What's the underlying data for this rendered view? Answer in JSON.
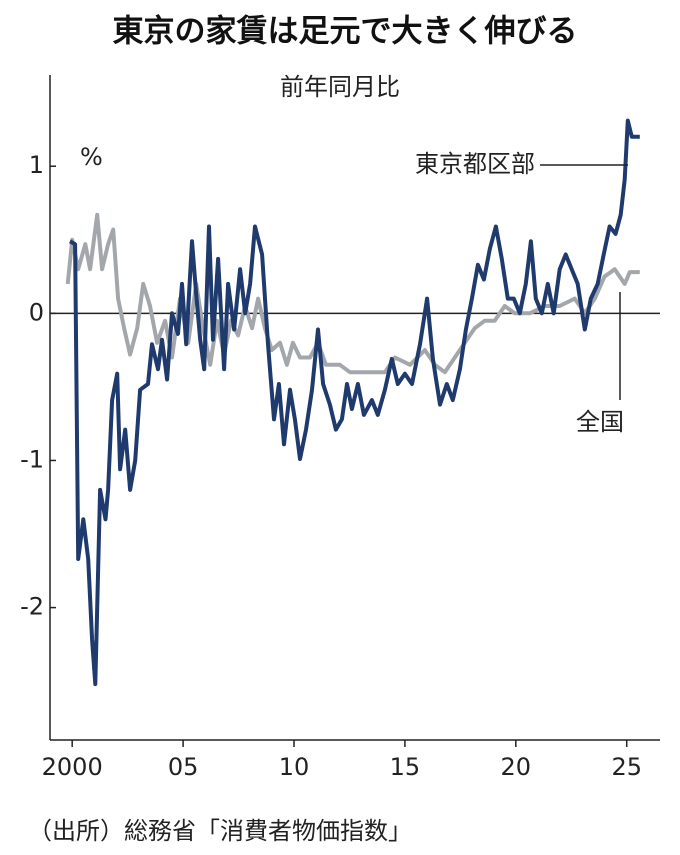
{
  "chart_data": {
    "type": "line",
    "title": "東京の家賃は足元で大きく伸びる",
    "subtitle": "前年同月比",
    "ylabel": "%",
    "source": "（出所）総務省「消費者物価指数」",
    "xlim": [
      1999,
      2026.5
    ],
    "xticks": [
      2000,
      {
        "value": 2005,
        "label": "05"
      },
      {
        "value": 2010,
        "label": "10"
      },
      {
        "value": 2015,
        "label": "15"
      },
      {
        "value": 2020,
        "label": "20"
      },
      {
        "value": 2025,
        "label": "25"
      }
    ],
    "ylim": [
      -2.9,
      1.62
    ],
    "yticks": [
      1,
      0,
      -1,
      -2
    ],
    "zero_line": true,
    "series": [
      {
        "name": "東京都区部",
        "color": "#1f3b6e",
        "x": [
          1999.9,
          2000.13,
          2000.27,
          2000.5,
          2000.72,
          2000.9,
          2001.04,
          2001.26,
          2001.5,
          2001.62,
          2001.8,
          2002.03,
          2002.16,
          2002.39,
          2002.61,
          2002.84,
          2003.06,
          2003.42,
          2003.6,
          2003.87,
          2004.05,
          2004.28,
          2004.5,
          2004.77,
          2004.95,
          2005.14,
          2005.4,
          2005.59,
          2005.77,
          2005.95,
          2006.17,
          2006.35,
          2006.58,
          2006.85,
          2007.03,
          2007.3,
          2007.57,
          2007.8,
          2008.02,
          2008.24,
          2008.56,
          2008.83,
          2009.1,
          2009.32,
          2009.55,
          2009.82,
          2010.04,
          2010.27,
          2010.54,
          2010.81,
          2011.08,
          2011.31,
          2011.62,
          2011.89,
          2012.16,
          2012.39,
          2012.61,
          2012.88,
          2013.15,
          2013.51,
          2013.78,
          2014.1,
          2014.41,
          2014.68,
          2015.0,
          2015.32,
          2015.68,
          2016.0,
          2016.26,
          2016.58,
          2016.89,
          2017.16,
          2017.48,
          2017.75,
          2018.02,
          2018.29,
          2018.56,
          2018.83,
          2019.1,
          2019.37,
          2019.64,
          2019.91,
          2020.18,
          2020.45,
          2020.68,
          2020.9,
          2021.17,
          2021.44,
          2021.71,
          2021.98,
          2022.25,
          2022.52,
          2022.79,
          2023.11,
          2023.38,
          2023.69,
          2023.96,
          2024.23,
          2024.5,
          2024.73,
          2024.91,
          2025.05,
          2025.23,
          2025.59
        ],
        "values": [
          0.49,
          0.47,
          -1.67,
          -1.4,
          -1.67,
          -2.22,
          -2.52,
          -1.2,
          -1.4,
          -1.2,
          -0.59,
          -0.41,
          -1.06,
          -0.79,
          -1.2,
          -1.0,
          -0.52,
          -0.48,
          -0.21,
          -0.38,
          -0.18,
          -0.45,
          0,
          -0.14,
          0.2,
          -0.21,
          0.49,
          0.13,
          -0.18,
          -0.38,
          0.59,
          -0.18,
          0.37,
          -0.38,
          0.2,
          -0.11,
          0.3,
          0,
          0.2,
          0.59,
          0.4,
          -0.21,
          -0.72,
          -0.48,
          -0.89,
          -0.52,
          -0.72,
          -0.99,
          -0.79,
          -0.52,
          -0.11,
          -0.48,
          -0.62,
          -0.79,
          -0.72,
          -0.48,
          -0.65,
          -0.48,
          -0.69,
          -0.59,
          -0.69,
          -0.52,
          -0.31,
          -0.48,
          -0.41,
          -0.48,
          -0.21,
          0.1,
          -0.31,
          -0.62,
          -0.48,
          -0.59,
          -0.38,
          -0.11,
          0.1,
          0.33,
          0.23,
          0.44,
          0.59,
          0.37,
          0.1,
          0.1,
          0,
          0.2,
          0.49,
          0.1,
          0,
          0.2,
          0,
          0.3,
          0.4,
          0.3,
          0.2,
          -0.11,
          0.1,
          0.2,
          0.4,
          0.59,
          0.54,
          0.67,
          0.91,
          1.31,
          1.2,
          1.2
        ]
      },
      {
        "name": "全国",
        "color": "#a3a7ab",
        "x": [
          1999.8,
          2000.0,
          2000.27,
          2000.59,
          2000.81,
          2001.13,
          2001.35,
          2001.62,
          2001.85,
          2002.07,
          2002.34,
          2002.61,
          2002.93,
          2003.2,
          2003.51,
          2003.83,
          2004.19,
          2004.5,
          2004.86,
          2005.23,
          2005.59,
          2005.9,
          2006.22,
          2006.53,
          2006.85,
          2007.16,
          2007.48,
          2007.79,
          2008.11,
          2008.38,
          2008.69,
          2009.0,
          2009.37,
          2009.68,
          2009.95,
          2010.27,
          2010.72,
          2011.08,
          2011.44,
          2012.07,
          2012.52,
          2013.42,
          2014.1,
          2014.55,
          2015.23,
          2015.9,
          2016.35,
          2016.8,
          2017.25,
          2017.7,
          2018.15,
          2018.6,
          2019.05,
          2019.5,
          2019.95,
          2020.63,
          2021.31,
          2021.98,
          2022.66,
          2023.11,
          2023.56,
          2024.0,
          2024.46,
          2024.91,
          2025.14,
          2025.59
        ],
        "values": [
          0.2,
          0.5,
          0.3,
          0.47,
          0.3,
          0.67,
          0.3,
          0.47,
          0.57,
          0.1,
          -0.1,
          -0.28,
          -0.1,
          0.2,
          0.05,
          -0.2,
          -0.05,
          -0.3,
          0.1,
          -0.2,
          0.2,
          -0.1,
          -0.35,
          -0.05,
          -0.28,
          -0.05,
          -0.15,
          0.05,
          -0.1,
          0.1,
          -0.1,
          -0.25,
          -0.2,
          -0.35,
          -0.2,
          -0.3,
          -0.3,
          -0.2,
          -0.35,
          -0.35,
          -0.4,
          -0.4,
          -0.4,
          -0.3,
          -0.35,
          -0.25,
          -0.35,
          -0.4,
          -0.3,
          -0.2,
          -0.1,
          -0.05,
          -0.05,
          0.05,
          0,
          0,
          0.05,
          0.05,
          0.1,
          0,
          0.1,
          0.25,
          0.3,
          0.2,
          0.28,
          0.28
        ]
      }
    ]
  }
}
